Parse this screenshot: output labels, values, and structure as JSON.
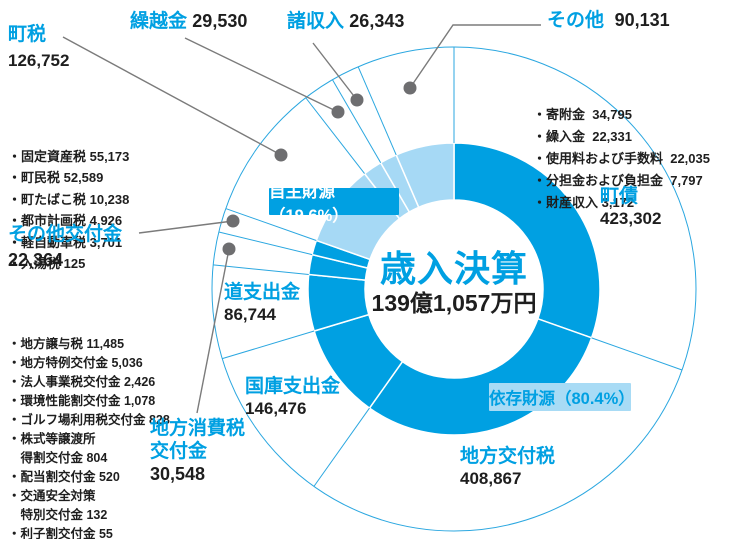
{
  "colors": {
    "dark": "#00A0E2",
    "pale": "#A6D9F5",
    "ring_line": "#2BA7E0",
    "leader_gray": "#7B7B7B",
    "dot_gray": "#6E6E70",
    "text_black": "#1E1E1E",
    "white": "#FFFFFF"
  },
  "center": {
    "title": "歳入決算",
    "subtitle": "139億1,057万円"
  },
  "rings": {
    "jishu_label": "自主財源（19.6%）",
    "izon_label": "依存財源（80.4%）"
  },
  "labels": {
    "chozei": {
      "title": "町税",
      "value": "126,752",
      "items": [
        "・固定資産税 55,173",
        "・町民税 52,589",
        "・町たばこ税 10,238",
        "・都市計画税 4,926",
        "・軽自動車税 3,701",
        "・入湯税 125"
      ]
    },
    "kurikoshikin": {
      "title": "繰越金",
      "value": "29,530"
    },
    "shoshunyu": {
      "title": "諸収入",
      "value": "26,343"
    },
    "sonota": {
      "title": "その他",
      "value": "90,131",
      "items": [
        "・寄附金  34,795",
        "・繰入金  22,331",
        "・使用料および手数料  22,035",
        "・分担金および負担金  7,797",
        "・財産収入 3,172"
      ]
    },
    "sonota_kofukin": {
      "title": "その他交付金",
      "value": "22,364",
      "items": [
        "・地方譲与税 11,485",
        "・地方特例交付金 5,036",
        "・法人事業税交付金 2,426",
        "・環境性能割交付金 1,078",
        "・ゴルフ場利用税交付金 828",
        "・株式等譲渡所",
        "　得割交付金 804",
        "・配当割交付金 520",
        "・交通安全対策",
        "　特別交付金 132",
        "・利子割交付金 55"
      ]
    },
    "chiho_shohizei": {
      "title_line1": "地方消費税",
      "title_line2": "交付金",
      "value": "30,548"
    },
    "do_shishutsukin": {
      "title": "道支出金",
      "value": "86,744"
    },
    "kokko_shishutsukin": {
      "title": "国庫支出金",
      "value": "146,476"
    },
    "chosai": {
      "title": "町債",
      "value": "423,302"
    },
    "chiho_kofuzei": {
      "title": "地方交付税",
      "value": "408,867"
    }
  },
  "chart_data": {
    "type": "pie",
    "subtype": "donut",
    "title": "歳入決算",
    "total_label": "139億1,057万円",
    "total_value": 1391057,
    "unit": "万円",
    "start_angle_deg": 0,
    "direction": "clockwise",
    "legend_position": "around",
    "groups": [
      {
        "name": "依存財源",
        "percent": 80.4,
        "label": "依存財源（80.4%）"
      },
      {
        "name": "自主財源",
        "percent": 19.6,
        "label": "自主財源（19.6%）"
      }
    ],
    "slices": [
      {
        "label": "町債",
        "value": 423302,
        "group": "依存財源"
      },
      {
        "label": "地方交付税",
        "value": 408867,
        "group": "依存財源"
      },
      {
        "label": "国庫支出金",
        "value": 146476,
        "group": "依存財源"
      },
      {
        "label": "道支出金",
        "value": 86744,
        "group": "依存財源"
      },
      {
        "label": "地方消費税交付金",
        "value": 30548,
        "group": "依存財源"
      },
      {
        "label": "その他交付金",
        "value": 22364,
        "group": "依存財源"
      },
      {
        "label": "町税",
        "value": 126752,
        "group": "自主財源"
      },
      {
        "label": "繰越金",
        "value": 29530,
        "group": "自主財源"
      },
      {
        "label": "諸収入",
        "value": 26343,
        "group": "自主財源"
      },
      {
        "label": "その他",
        "value": 90131,
        "group": "自主財源"
      }
    ]
  }
}
